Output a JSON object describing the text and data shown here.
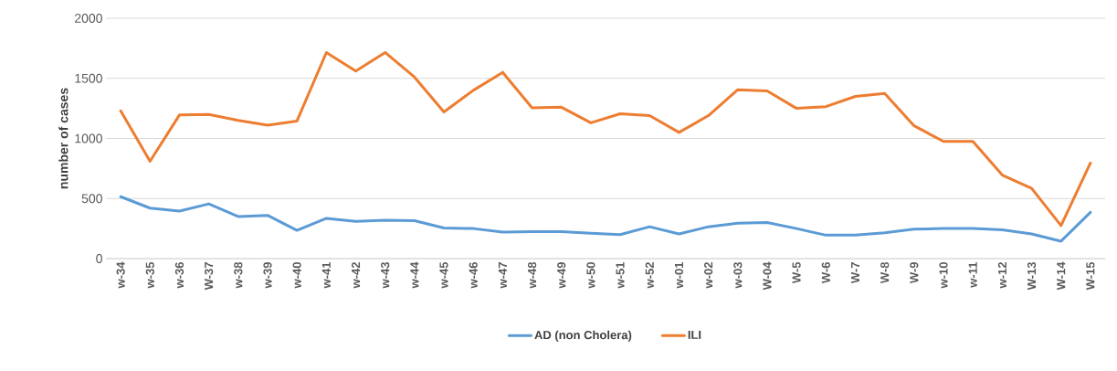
{
  "chart_data": {
    "type": "line",
    "ylabel": "number of cases",
    "categories": [
      "w-34",
      "w-35",
      "w-36",
      "W-37",
      "w-38",
      "w-39",
      "w-40",
      "w-41",
      "w-42",
      "w-43",
      "w-44",
      "w-45",
      "w-46",
      "w-47",
      "w-48",
      "w-49",
      "w-50",
      "w-51",
      "w-52",
      "w-01",
      "w-02",
      "w-03",
      "W-04",
      "W-5",
      "W-6",
      "W-7",
      "W-8",
      "W-9",
      "w-10",
      "w-11",
      "w-12",
      "W-13",
      "W-14",
      "W-15"
    ],
    "series": [
      {
        "name": "AD (non Cholera)",
        "color": "#5b9bd5",
        "values": [
          515,
          420,
          395,
          455,
          350,
          360,
          235,
          335,
          310,
          320,
          315,
          255,
          250,
          220,
          225,
          225,
          210,
          200,
          265,
          205,
          265,
          295,
          300,
          250,
          195,
          195,
          215,
          245,
          250,
          250,
          240,
          205,
          145,
          385
        ]
      },
      {
        "name": "ILI",
        "color": "#ed7d31",
        "values": [
          1230,
          810,
          1195,
          1200,
          1150,
          1110,
          1145,
          1715,
          1560,
          1715,
          1510,
          1220,
          1400,
          1550,
          1255,
          1260,
          1130,
          1205,
          1190,
          1050,
          1190,
          1405,
          1395,
          1250,
          1265,
          1350,
          1375,
          1105,
          975,
          975,
          695,
          585,
          275,
          795
        ]
      }
    ],
    "ylim": [
      0,
      2000
    ],
    "yticks": [
      0,
      500,
      1000,
      1500,
      2000
    ],
    "grid": "y",
    "legend": "bottom"
  }
}
